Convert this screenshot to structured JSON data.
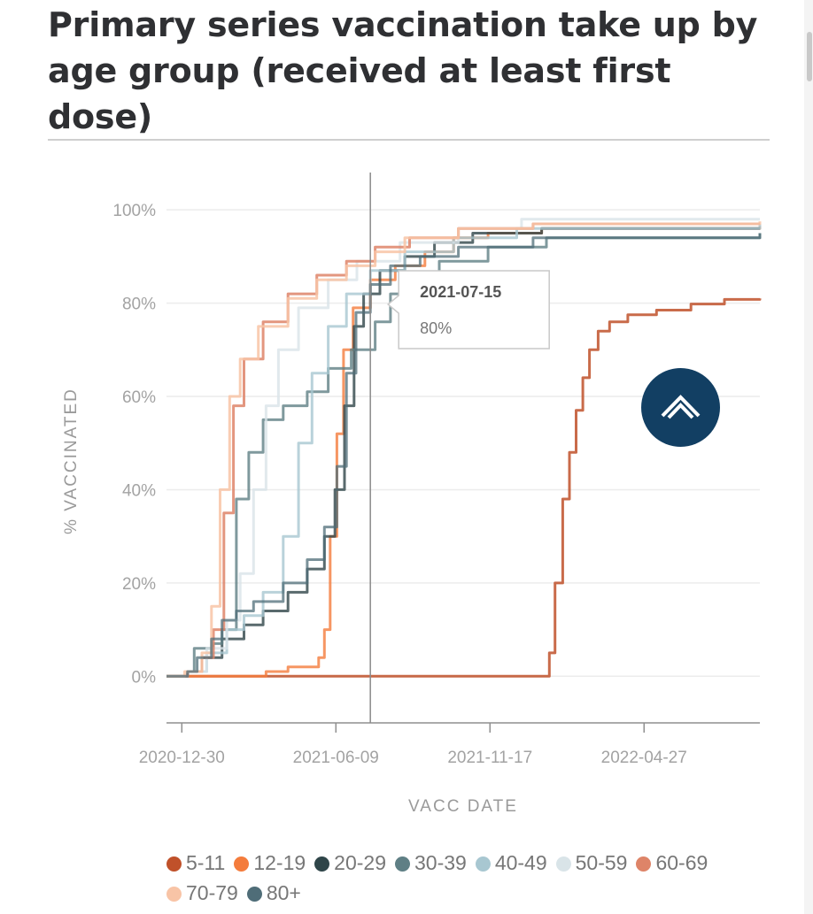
{
  "page": {
    "title": "Primary series vaccination take up by age group (received at least first dose)"
  },
  "chart_data": {
    "type": "line",
    "title": "Primary series vaccination take up by age group (received at least first dose)",
    "xlabel": "VACC DATE",
    "ylabel": "% VACCINATED",
    "x_range": [
      "2020-12-14",
      "2022-08-26"
    ],
    "ylim": [
      -10,
      108
    ],
    "x_ticks": [
      "2020-12-30",
      "2021-06-09",
      "2021-11-17",
      "2022-04-27"
    ],
    "y_ticks": [
      0,
      20,
      40,
      60,
      80,
      100
    ],
    "y_tick_labels": [
      "0%",
      "20%",
      "40%",
      "60%",
      "80%",
      "100%"
    ],
    "grid": "horizontal",
    "legend_position": "bottom",
    "crosshair": {
      "date": "2021-07-15"
    },
    "tooltip": {
      "date": "2021-07-15",
      "value": "80%"
    },
    "series": [
      {
        "name": "5-11",
        "color": "#c0512a",
        "emphasis": 0.85,
        "points": [
          [
            "2020-12-14",
            0
          ],
          [
            "2022-01-12",
            0
          ],
          [
            "2022-01-18",
            5
          ],
          [
            "2022-01-24",
            20
          ],
          [
            "2022-02-01",
            38
          ],
          [
            "2022-02-08",
            48
          ],
          [
            "2022-02-15",
            57
          ],
          [
            "2022-02-22",
            64
          ],
          [
            "2022-03-01",
            70
          ],
          [
            "2022-03-10",
            74
          ],
          [
            "2022-03-22",
            76
          ],
          [
            "2022-04-10",
            77.5
          ],
          [
            "2022-05-10",
            78.5
          ],
          [
            "2022-06-15",
            79.8
          ],
          [
            "2022-07-20",
            80.8
          ],
          [
            "2022-08-26",
            81
          ]
        ]
      },
      {
        "name": "12-19",
        "color": "#f47c3c",
        "emphasis": 0.8,
        "points": [
          [
            "2020-12-14",
            0
          ],
          [
            "2021-03-10",
            0
          ],
          [
            "2021-03-28",
            1
          ],
          [
            "2021-04-20",
            2
          ],
          [
            "2021-05-22",
            4
          ],
          [
            "2021-05-28",
            10
          ],
          [
            "2021-06-03",
            30
          ],
          [
            "2021-06-10",
            52
          ],
          [
            "2021-06-17",
            70
          ],
          [
            "2021-06-27",
            79
          ],
          [
            "2021-07-15",
            85
          ],
          [
            "2021-08-10",
            88
          ],
          [
            "2021-09-10",
            91
          ],
          [
            "2021-10-10",
            94
          ],
          [
            "2021-11-15",
            95
          ],
          [
            "2022-01-10",
            96
          ],
          [
            "2022-08-26",
            96.5
          ]
        ]
      },
      {
        "name": "20-29",
        "color": "#2f4549",
        "emphasis": 0.8,
        "points": [
          [
            "2020-12-14",
            0
          ],
          [
            "2021-01-05",
            1
          ],
          [
            "2021-01-20",
            4
          ],
          [
            "2021-02-10",
            8
          ],
          [
            "2021-03-05",
            11
          ],
          [
            "2021-03-25",
            14
          ],
          [
            "2021-04-20",
            18
          ],
          [
            "2021-05-10",
            23
          ],
          [
            "2021-05-28",
            30
          ],
          [
            "2021-06-08",
            40
          ],
          [
            "2021-06-18",
            58
          ],
          [
            "2021-06-28",
            75
          ],
          [
            "2021-07-08",
            82
          ],
          [
            "2021-07-25",
            87
          ],
          [
            "2021-08-20",
            90
          ],
          [
            "2021-09-20",
            93
          ],
          [
            "2021-10-30",
            95
          ],
          [
            "2022-01-10",
            96
          ],
          [
            "2022-08-26",
            96
          ]
        ]
      },
      {
        "name": "30-39",
        "color": "#5f7f85",
        "emphasis": 0.8,
        "points": [
          [
            "2020-12-14",
            0
          ],
          [
            "2021-01-05",
            1
          ],
          [
            "2021-01-12",
            6
          ],
          [
            "2021-02-01",
            7
          ],
          [
            "2021-02-10",
            10
          ],
          [
            "2021-02-25",
            38
          ],
          [
            "2021-03-10",
            48
          ],
          [
            "2021-03-25",
            55
          ],
          [
            "2021-04-15",
            58
          ],
          [
            "2021-05-10",
            61
          ],
          [
            "2021-06-01",
            66
          ],
          [
            "2021-06-25",
            70
          ],
          [
            "2021-07-20",
            76
          ],
          [
            "2021-08-05",
            82
          ],
          [
            "2021-08-25",
            86
          ],
          [
            "2021-09-25",
            89
          ],
          [
            "2021-11-15",
            92
          ],
          [
            "2022-01-15",
            94
          ],
          [
            "2022-08-26",
            95
          ]
        ]
      },
      {
        "name": "40-49",
        "color": "#a8c7d1",
        "emphasis": 0.8,
        "points": [
          [
            "2020-12-14",
            0
          ],
          [
            "2021-01-05",
            1
          ],
          [
            "2021-01-25",
            5
          ],
          [
            "2021-02-15",
            10
          ],
          [
            "2021-03-05",
            13
          ],
          [
            "2021-03-25",
            18
          ],
          [
            "2021-04-15",
            30
          ],
          [
            "2021-05-01",
            50
          ],
          [
            "2021-05-15",
            65
          ],
          [
            "2021-06-01",
            75
          ],
          [
            "2021-06-20",
            82
          ],
          [
            "2021-07-15",
            87
          ],
          [
            "2021-08-20",
            91
          ],
          [
            "2021-10-10",
            94
          ],
          [
            "2021-12-15",
            96
          ],
          [
            "2022-08-26",
            97
          ]
        ]
      },
      {
        "name": "50-59",
        "color": "#d9e4e8",
        "emphasis": 0.8,
        "points": [
          [
            "2020-12-14",
            0
          ],
          [
            "2021-01-05",
            1
          ],
          [
            "2021-01-25",
            6
          ],
          [
            "2021-02-15",
            12
          ],
          [
            "2021-03-01",
            22
          ],
          [
            "2021-03-15",
            40
          ],
          [
            "2021-03-28",
            58
          ],
          [
            "2021-04-10",
            70
          ],
          [
            "2021-05-01",
            79
          ],
          [
            "2021-06-01",
            85
          ],
          [
            "2021-07-01",
            89
          ],
          [
            "2021-08-15",
            93
          ],
          [
            "2021-10-15",
            96
          ],
          [
            "2021-12-20",
            98
          ],
          [
            "2022-08-26",
            98
          ]
        ]
      },
      {
        "name": "60-69",
        "color": "#de8468",
        "emphasis": 0.85,
        "points": [
          [
            "2020-12-14",
            0
          ],
          [
            "2021-01-05",
            1
          ],
          [
            "2021-01-20",
            4
          ],
          [
            "2021-02-01",
            10
          ],
          [
            "2021-02-12",
            35
          ],
          [
            "2021-02-22",
            58
          ],
          [
            "2021-03-05",
            68
          ],
          [
            "2021-03-25",
            76
          ],
          [
            "2021-04-20",
            82
          ],
          [
            "2021-05-20",
            86
          ],
          [
            "2021-06-20",
            89
          ],
          [
            "2021-07-20",
            92
          ],
          [
            "2021-08-25",
            94
          ],
          [
            "2021-10-15",
            96
          ],
          [
            "2022-01-01",
            97
          ],
          [
            "2022-08-26",
            97
          ]
        ]
      },
      {
        "name": "70-79",
        "color": "#f8c4a6",
        "emphasis": 0.85,
        "points": [
          [
            "2020-12-14",
            0
          ],
          [
            "2021-01-02",
            1
          ],
          [
            "2021-01-20",
            5
          ],
          [
            "2021-01-30",
            15
          ],
          [
            "2021-02-08",
            40
          ],
          [
            "2021-02-18",
            60
          ],
          [
            "2021-03-01",
            68
          ],
          [
            "2021-03-20",
            75
          ],
          [
            "2021-04-20",
            81
          ],
          [
            "2021-05-20",
            85
          ],
          [
            "2021-06-20",
            88
          ],
          [
            "2021-07-20",
            91
          ],
          [
            "2021-08-20",
            94
          ],
          [
            "2021-10-15",
            96
          ],
          [
            "2022-01-01",
            97
          ],
          [
            "2022-08-26",
            97.5
          ]
        ]
      },
      {
        "name": "80+",
        "color": "#4f6d78",
        "emphasis": 0.75,
        "points": [
          [
            "2020-12-14",
            0
          ],
          [
            "2021-01-05",
            1
          ],
          [
            "2021-01-15",
            4
          ],
          [
            "2021-01-30",
            8
          ],
          [
            "2021-02-10",
            12
          ],
          [
            "2021-02-25",
            14
          ],
          [
            "2021-03-15",
            16
          ],
          [
            "2021-04-15",
            20
          ],
          [
            "2021-05-10",
            25
          ],
          [
            "2021-05-28",
            32
          ],
          [
            "2021-06-10",
            45
          ],
          [
            "2021-06-20",
            65
          ],
          [
            "2021-06-30",
            78
          ],
          [
            "2021-07-15",
            84
          ],
          [
            "2021-08-05",
            88
          ],
          [
            "2021-09-05",
            90
          ],
          [
            "2021-10-15",
            92
          ],
          [
            "2022-01-01",
            94
          ],
          [
            "2022-08-26",
            95
          ]
        ]
      }
    ]
  }
}
